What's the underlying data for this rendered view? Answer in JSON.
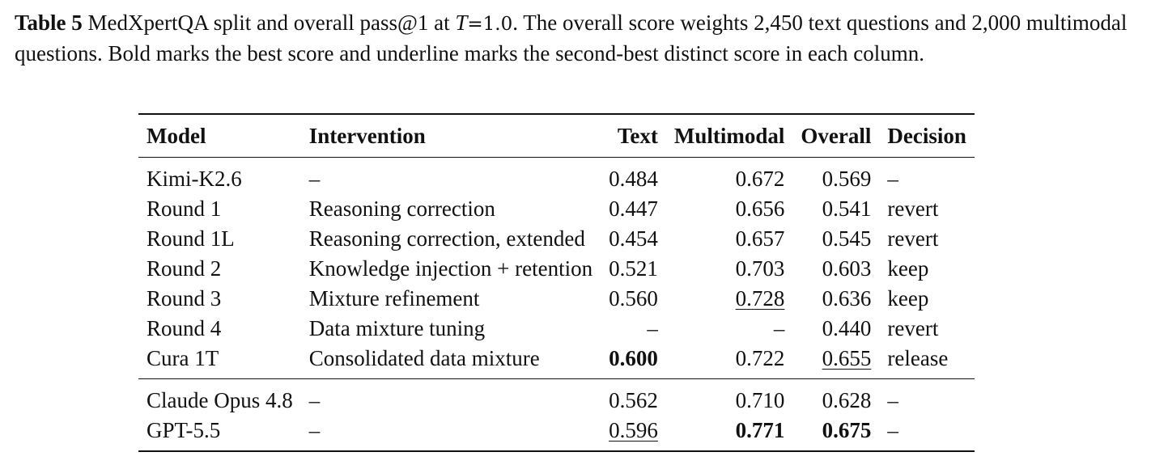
{
  "caption": {
    "label": "Table 5",
    "text_before_math": "MedXpertQA split and overall pass@1 at",
    "math_var": "T",
    "math_eq": "=1.0",
    "text_after_math": ". The overall score weights 2,450 text questions and 2,000 multimodal questions. Bold marks the best score and underline marks the second-best distinct score in each column."
  },
  "table": {
    "headers": {
      "model": "Model",
      "intervention": "Intervention",
      "text": "Text",
      "multimodal": "Multimodal",
      "overall": "Overall",
      "decision": "Decision"
    },
    "rows": [
      {
        "model": "Kimi-K2.6",
        "intervention": "–",
        "text": "0.484",
        "multimodal": "0.672",
        "overall": "0.569",
        "decision": "–"
      },
      {
        "model": "Round 1",
        "intervention": "Reasoning correction",
        "text": "0.447",
        "multimodal": "0.656",
        "overall": "0.541",
        "decision": "revert"
      },
      {
        "model": "Round 1L",
        "intervention": "Reasoning correction, extended",
        "text": "0.454",
        "multimodal": "0.657",
        "overall": "0.545",
        "decision": "revert"
      },
      {
        "model": "Round 2",
        "intervention": "Knowledge injection + retention",
        "text": "0.521",
        "multimodal": "0.703",
        "overall": "0.603",
        "decision": "keep"
      },
      {
        "model": "Round 3",
        "intervention": "Mixture refinement",
        "text": "0.560",
        "multimodal": "0.728",
        "overall": "0.636",
        "decision": "keep"
      },
      {
        "model": "Round 4",
        "intervention": "Data mixture tuning",
        "text": "–",
        "multimodal": "–",
        "overall": "0.440",
        "decision": "revert"
      },
      {
        "model": "Cura 1T",
        "intervention": "Consolidated data mixture",
        "text": "0.600",
        "multimodal": "0.722",
        "overall": "0.655",
        "decision": "release"
      }
    ],
    "reference_rows": [
      {
        "model": "Claude Opus 4.8",
        "intervention": "–",
        "text": "0.562",
        "multimodal": "0.710",
        "overall": "0.628",
        "decision": "–"
      },
      {
        "model": "GPT-5.5",
        "intervention": "–",
        "text": "0.596",
        "multimodal": "0.771",
        "overall": "0.675",
        "decision": "–"
      }
    ]
  }
}
